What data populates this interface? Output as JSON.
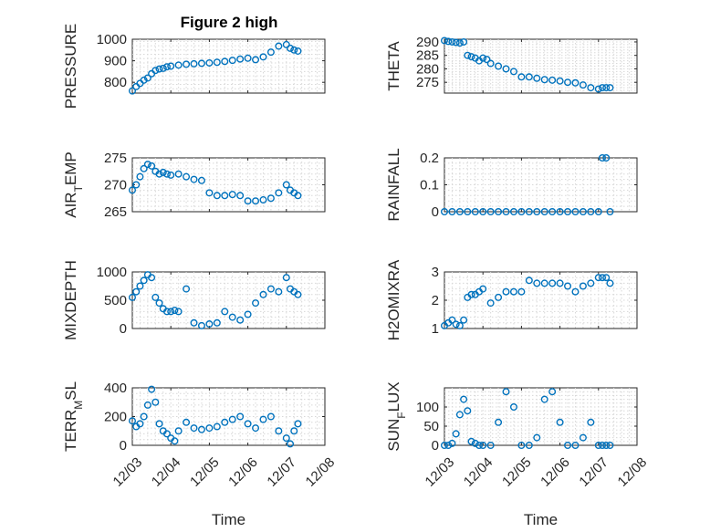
{
  "figure": {
    "title": "Figure 2 high",
    "marker_color": "#0072BD",
    "background": "#ffffff"
  },
  "chart_data": [
    {
      "id": "pressure",
      "type": "scatter",
      "title": "Figure 2 high",
      "ylabel": "PRESSURE",
      "xlabel": "",
      "x_ticks": [
        "12/03",
        "12/04",
        "12/05",
        "12/06",
        "12/07",
        "12/08"
      ],
      "x_labels_visible": false,
      "xlim": [
        0,
        5
      ],
      "ylim": [
        750,
        1000
      ],
      "y_ticks": [
        800,
        900,
        1000
      ],
      "grid": true,
      "x": [
        0,
        0.1,
        0.2,
        0.3,
        0.4,
        0.5,
        0.6,
        0.7,
        0.8,
        0.9,
        1.0,
        1.2,
        1.4,
        1.6,
        1.8,
        2.0,
        2.2,
        2.4,
        2.6,
        2.8,
        3.0,
        3.2,
        3.4,
        3.6,
        3.8,
        4.0,
        4.1,
        4.2,
        4.3
      ],
      "y": [
        760,
        780,
        795,
        810,
        820,
        840,
        855,
        862,
        865,
        872,
        875,
        880,
        884,
        886,
        888,
        890,
        893,
        897,
        902,
        908,
        912,
        905,
        918,
        940,
        968,
        975,
        958,
        950,
        945
      ]
    },
    {
      "id": "theta",
      "type": "scatter",
      "ylabel": "THETA",
      "xlabel": "",
      "x_ticks": [
        "12/03",
        "12/04",
        "12/05",
        "12/06",
        "12/07",
        "12/08"
      ],
      "x_labels_visible": false,
      "xlim": [
        0,
        5
      ],
      "ylim": [
        271,
        291
      ],
      "y_ticks": [
        275,
        280,
        285,
        290
      ],
      "grid": true,
      "x": [
        0,
        0.1,
        0.2,
        0.3,
        0.4,
        0.5,
        0.6,
        0.7,
        0.8,
        0.9,
        1.0,
        1.1,
        1.2,
        1.4,
        1.6,
        1.8,
        2.0,
        2.2,
        2.4,
        2.6,
        2.8,
        3.0,
        3.2,
        3.4,
        3.6,
        3.8,
        4.0,
        4.1,
        4.2,
        4.3
      ],
      "y": [
        290.5,
        290.2,
        290,
        289.8,
        289.6,
        290,
        285,
        284.5,
        284,
        283,
        284,
        283.5,
        282,
        281,
        280,
        279,
        277,
        277,
        276.5,
        276,
        275.8,
        275.5,
        275,
        274.8,
        274,
        273,
        272.5,
        273,
        273,
        273
      ]
    },
    {
      "id": "air_temp",
      "type": "scatter",
      "ylabel": "AIR_TEMP",
      "xlabel": "",
      "x_ticks": [
        "12/03",
        "12/04",
        "12/05",
        "12/06",
        "12/07",
        "12/08"
      ],
      "x_labels_visible": false,
      "xlim": [
        0,
        5
      ],
      "ylim": [
        265,
        275
      ],
      "y_ticks": [
        265,
        270,
        275
      ],
      "grid": true,
      "x": [
        0,
        0.1,
        0.2,
        0.3,
        0.4,
        0.5,
        0.6,
        0.7,
        0.8,
        0.9,
        1.0,
        1.2,
        1.4,
        1.6,
        1.8,
        2.0,
        2.2,
        2.4,
        2.6,
        2.8,
        3.0,
        3.2,
        3.4,
        3.6,
        3.8,
        4.0,
        4.1,
        4.2,
        4.3
      ],
      "y": [
        269,
        270,
        271.5,
        273,
        273.8,
        273.5,
        272.5,
        272,
        272.3,
        272,
        271.8,
        272,
        271.5,
        271,
        270.8,
        268.5,
        268,
        268,
        268.2,
        268,
        267,
        267,
        267.2,
        267.5,
        268.5,
        270,
        269,
        268.5,
        268
      ]
    },
    {
      "id": "rainfall",
      "type": "scatter",
      "ylabel": "RAINFALL",
      "xlabel": "",
      "x_ticks": [
        "12/03",
        "12/04",
        "12/05",
        "12/06",
        "12/07",
        "12/08"
      ],
      "x_labels_visible": false,
      "xlim": [
        0,
        5
      ],
      "ylim": [
        0,
        0.2
      ],
      "y_ticks": [
        0,
        0.1,
        0.2
      ],
      "grid": true,
      "x": [
        0,
        0.2,
        0.4,
        0.6,
        0.8,
        1.0,
        1.2,
        1.4,
        1.6,
        1.8,
        2.0,
        2.2,
        2.4,
        2.6,
        2.8,
        3.0,
        3.2,
        3.4,
        3.6,
        3.8,
        4.0,
        4.1,
        4.2,
        4.3
      ],
      "y": [
        0,
        0,
        0,
        0,
        0,
        0,
        0,
        0,
        0,
        0,
        0,
        0,
        0,
        0,
        0,
        0,
        0,
        0,
        0,
        0,
        0,
        0.2,
        0.2,
        0
      ]
    },
    {
      "id": "mixdepth",
      "type": "scatter",
      "ylabel": "MIXDEPTH",
      "xlabel": "",
      "x_ticks": [
        "12/03",
        "12/04",
        "12/05",
        "12/06",
        "12/07",
        "12/08"
      ],
      "x_labels_visible": false,
      "xlim": [
        0,
        5
      ],
      "ylim": [
        0,
        1000
      ],
      "y_ticks": [
        0,
        500,
        1000
      ],
      "grid": true,
      "x": [
        0,
        0.1,
        0.2,
        0.3,
        0.4,
        0.5,
        0.6,
        0.7,
        0.8,
        0.9,
        1.0,
        1.1,
        1.2,
        1.4,
        1.6,
        1.8,
        2.0,
        2.2,
        2.4,
        2.6,
        2.8,
        3.0,
        3.2,
        3.4,
        3.6,
        3.8,
        4.0,
        4.1,
        4.2,
        4.3
      ],
      "y": [
        550,
        650,
        750,
        850,
        950,
        900,
        550,
        450,
        350,
        300,
        300,
        320,
        300,
        700,
        100,
        50,
        80,
        100,
        300,
        200,
        150,
        250,
        450,
        600,
        700,
        650,
        900,
        700,
        650,
        600
      ]
    },
    {
      "id": "h2omixra",
      "type": "scatter",
      "ylabel": "H2OMIXRA",
      "xlabel": "",
      "x_ticks": [
        "12/03",
        "12/04",
        "12/05",
        "12/06",
        "12/07",
        "12/08"
      ],
      "x_labels_visible": false,
      "xlim": [
        0,
        5
      ],
      "ylim": [
        1,
        3
      ],
      "y_ticks": [
        1,
        2,
        3
      ],
      "grid": true,
      "x": [
        0,
        0.1,
        0.2,
        0.3,
        0.4,
        0.5,
        0.6,
        0.7,
        0.8,
        0.9,
        1.0,
        1.2,
        1.4,
        1.6,
        1.8,
        2.0,
        2.2,
        2.4,
        2.6,
        2.8,
        3.0,
        3.2,
        3.4,
        3.6,
        3.8,
        4.0,
        4.1,
        4.2,
        4.3
      ],
      "y": [
        1.1,
        1.2,
        1.3,
        1.15,
        1.1,
        1.3,
        2.1,
        2.2,
        2.2,
        2.3,
        2.4,
        1.9,
        2.1,
        2.3,
        2.3,
        2.3,
        2.7,
        2.6,
        2.6,
        2.6,
        2.6,
        2.5,
        2.3,
        2.5,
        2.6,
        2.8,
        2.8,
        2.8,
        2.6
      ]
    },
    {
      "id": "terr_msl",
      "type": "scatter",
      "ylabel": "TERR_MSL",
      "xlabel": "Time",
      "x_ticks": [
        "12/03",
        "12/04",
        "12/05",
        "12/06",
        "12/07",
        "12/08"
      ],
      "x_labels_visible": true,
      "xlim": [
        0,
        5
      ],
      "ylim": [
        0,
        400
      ],
      "y_ticks": [
        0,
        200,
        400
      ],
      "grid": true,
      "x": [
        0,
        0.1,
        0.2,
        0.3,
        0.4,
        0.5,
        0.6,
        0.7,
        0.8,
        0.9,
        1.0,
        1.1,
        1.2,
        1.4,
        1.6,
        1.8,
        2.0,
        2.2,
        2.4,
        2.6,
        2.8,
        3.0,
        3.2,
        3.4,
        3.6,
        3.8,
        4.0,
        4.1,
        4.2,
        4.3
      ],
      "y": [
        170,
        130,
        150,
        200,
        280,
        390,
        300,
        150,
        100,
        80,
        50,
        30,
        100,
        160,
        120,
        110,
        120,
        130,
        160,
        180,
        200,
        150,
        120,
        180,
        200,
        100,
        50,
        10,
        100,
        150
      ]
    },
    {
      "id": "sun_flux",
      "type": "scatter",
      "ylabel": "SUN_FLUX",
      "xlabel": "Time",
      "x_ticks": [
        "12/03",
        "12/04",
        "12/05",
        "12/06",
        "12/07",
        "12/08"
      ],
      "x_labels_visible": true,
      "xlim": [
        0,
        5
      ],
      "ylim": [
        0,
        150
      ],
      "y_ticks": [
        0,
        50,
        100
      ],
      "grid": true,
      "x": [
        0,
        0.1,
        0.2,
        0.3,
        0.4,
        0.5,
        0.6,
        0.7,
        0.8,
        0.9,
        1.0,
        1.2,
        1.4,
        1.6,
        1.8,
        2.0,
        2.2,
        2.4,
        2.6,
        2.8,
        3.0,
        3.2,
        3.4,
        3.6,
        3.8,
        4.0,
        4.1,
        4.2,
        4.3
      ],
      "y": [
        0,
        0,
        5,
        30,
        80,
        120,
        90,
        10,
        5,
        0,
        0,
        0,
        60,
        140,
        100,
        0,
        0,
        20,
        120,
        140,
        60,
        0,
        0,
        20,
        60,
        0,
        0,
        0,
        0
      ]
    }
  ]
}
